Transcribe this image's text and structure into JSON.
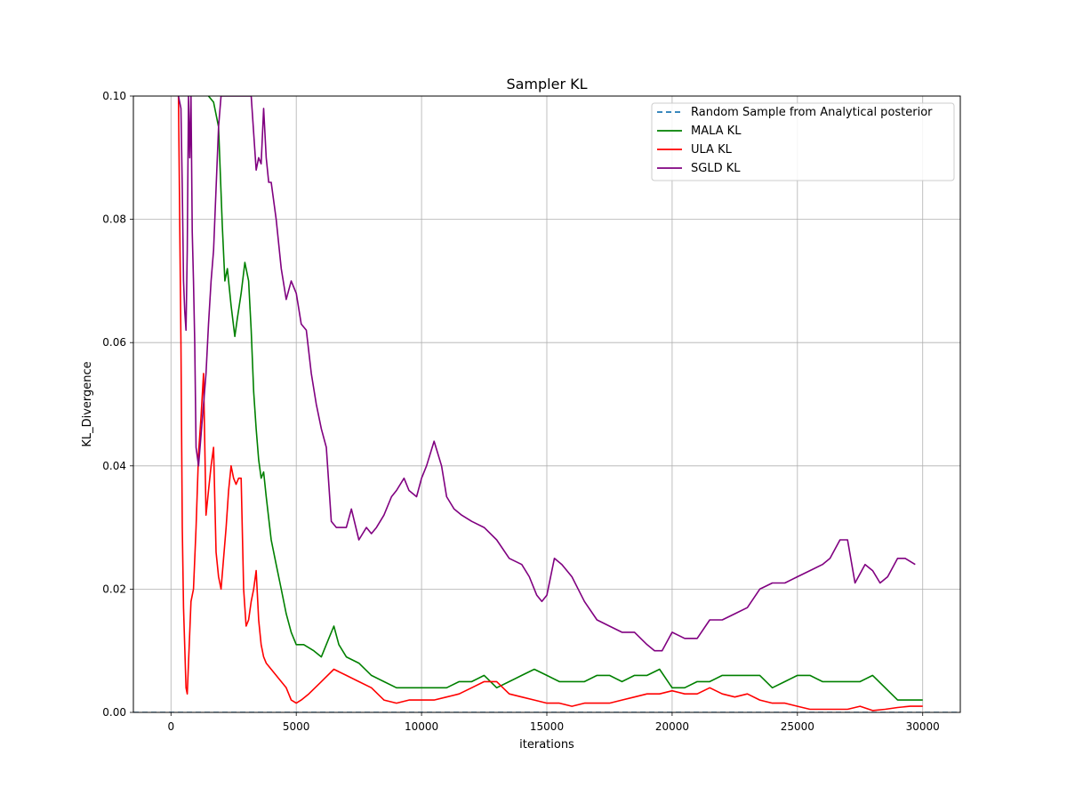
{
  "chart_data": {
    "type": "line",
    "title": "Sampler KL",
    "xlabel": "iterations",
    "ylabel": "KL_Divergence",
    "xlim": [
      -1500,
      31500
    ],
    "ylim": [
      0,
      0.1
    ],
    "xticks": [
      0,
      5000,
      10000,
      15000,
      20000,
      25000,
      30000
    ],
    "yticks": [
      0.0,
      0.02,
      0.04,
      0.06,
      0.08,
      0.1
    ],
    "ytick_labels": [
      "0.00",
      "0.02",
      "0.04",
      "0.06",
      "0.08",
      "0.10"
    ],
    "grid": true,
    "legend_position": "top-right",
    "series": [
      {
        "name": "Random Sample from Analytical posterior",
        "color": "#1f77b4",
        "style": "dashed",
        "x": [
          -1500,
          31500
        ],
        "y": [
          0.0,
          0.0
        ]
      },
      {
        "name": "MALA KL",
        "color": "#008000",
        "style": "solid",
        "x": [
          1500,
          1700,
          1900,
          2050,
          2150,
          2250,
          2400,
          2550,
          2650,
          2800,
          2950,
          3100,
          3200,
          3300,
          3400,
          3500,
          3600,
          3700,
          3800,
          4000,
          4200,
          4400,
          4600,
          4800,
          5000,
          5300,
          5700,
          6000,
          6300,
          6500,
          6700,
          7000,
          7500,
          8000,
          8500,
          9000,
          9500,
          10000,
          10500,
          11000,
          11500,
          12000,
          12500,
          13000,
          13500,
          14000,
          14500,
          15000,
          15500,
          16000,
          16500,
          17000,
          17500,
          18000,
          18500,
          19000,
          19500,
          20000,
          20500,
          21000,
          21500,
          22000,
          22500,
          23000,
          23500,
          24000,
          24500,
          25000,
          25500,
          26000,
          26500,
          27000,
          27500,
          28000,
          28500,
          29000,
          29500,
          30000
        ],
        "y": [
          0.1,
          0.099,
          0.095,
          0.079,
          0.07,
          0.072,
          0.066,
          0.061,
          0.064,
          0.068,
          0.073,
          0.07,
          0.062,
          0.052,
          0.046,
          0.041,
          0.038,
          0.039,
          0.035,
          0.028,
          0.024,
          0.02,
          0.016,
          0.013,
          0.011,
          0.011,
          0.01,
          0.009,
          0.012,
          0.014,
          0.011,
          0.009,
          0.008,
          0.006,
          0.005,
          0.004,
          0.004,
          0.004,
          0.004,
          0.004,
          0.005,
          0.005,
          0.006,
          0.004,
          0.005,
          0.006,
          0.007,
          0.006,
          0.005,
          0.005,
          0.005,
          0.006,
          0.006,
          0.005,
          0.006,
          0.006,
          0.007,
          0.004,
          0.004,
          0.005,
          0.005,
          0.006,
          0.006,
          0.006,
          0.006,
          0.004,
          0.005,
          0.006,
          0.006,
          0.005,
          0.005,
          0.005,
          0.005,
          0.006,
          0.004,
          0.002,
          0.002,
          0.002
        ]
      },
      {
        "name": "ULA KL",
        "color": "#ff0000",
        "style": "solid",
        "x": [
          300,
          400,
          450,
          500,
          600,
          650,
          700,
          800,
          900,
          1000,
          1100,
          1200,
          1300,
          1400,
          1500,
          1600,
          1700,
          1800,
          1900,
          2000,
          2200,
          2300,
          2400,
          2500,
          2600,
          2700,
          2800,
          2900,
          3000,
          3100,
          3200,
          3300,
          3400,
          3500,
          3600,
          3700,
          3800,
          4000,
          4200,
          4400,
          4600,
          4800,
          5000,
          5200,
          5500,
          6000,
          6500,
          7000,
          7500,
          8000,
          8500,
          9000,
          9500,
          10000,
          10500,
          11000,
          11500,
          12000,
          12500,
          13000,
          13500,
          14000,
          14500,
          15000,
          15500,
          16000,
          16500,
          17000,
          17500,
          18000,
          18500,
          19000,
          19500,
          20000,
          20500,
          21000,
          21500,
          22000,
          22500,
          23000,
          23500,
          24000,
          24500,
          25000,
          25500,
          26000,
          26500,
          27000,
          27500,
          28000,
          28500,
          29000,
          29500,
          30000
        ],
        "y": [
          0.1,
          0.06,
          0.03,
          0.017,
          0.004,
          0.003,
          0.008,
          0.018,
          0.02,
          0.03,
          0.042,
          0.048,
          0.055,
          0.032,
          0.036,
          0.04,
          0.043,
          0.026,
          0.022,
          0.02,
          0.03,
          0.036,
          0.04,
          0.038,
          0.037,
          0.038,
          0.038,
          0.02,
          0.014,
          0.015,
          0.018,
          0.02,
          0.023,
          0.015,
          0.011,
          0.009,
          0.008,
          0.007,
          0.006,
          0.005,
          0.004,
          0.002,
          0.0015,
          0.002,
          0.003,
          0.005,
          0.007,
          0.006,
          0.005,
          0.004,
          0.002,
          0.0015,
          0.002,
          0.002,
          0.002,
          0.0025,
          0.003,
          0.004,
          0.005,
          0.005,
          0.003,
          0.0025,
          0.002,
          0.0015,
          0.0015,
          0.001,
          0.0015,
          0.0015,
          0.0015,
          0.002,
          0.0025,
          0.003,
          0.003,
          0.0035,
          0.003,
          0.003,
          0.004,
          0.003,
          0.0025,
          0.003,
          0.002,
          0.0015,
          0.0015,
          0.001,
          0.0005,
          0.0005,
          0.0005,
          0.0005,
          0.001,
          0.0003,
          0.0005,
          0.0008,
          0.001,
          0.001
        ]
      },
      {
        "name": "SGLD KL",
        "color": "#800080",
        "style": "solid",
        "x": [
          300,
          400,
          450,
          500,
          550,
          600,
          650,
          700,
          750,
          800,
          850,
          900,
          950,
          1000,
          1100,
          1200,
          1300,
          1400,
          1500,
          1600,
          1700,
          1800,
          1900,
          2000,
          2200,
          2400,
          2600,
          2800,
          3000,
          3200,
          3400,
          3500,
          3600,
          3700,
          3800,
          3900,
          4000,
          4200,
          4400,
          4600,
          4800,
          5000,
          5200,
          5400,
          5600,
          5800,
          6000,
          6200,
          6400,
          6600,
          6800,
          7000,
          7200,
          7500,
          7800,
          8000,
          8200,
          8500,
          8800,
          9000,
          9300,
          9500,
          9800,
          10000,
          10200,
          10500,
          10800,
          11000,
          11300,
          11600,
          12000,
          12500,
          13000,
          13500,
          14000,
          14300,
          14600,
          14800,
          15000,
          15300,
          15600,
          16000,
          16500,
          17000,
          17500,
          18000,
          18500,
          19000,
          19300,
          19600,
          20000,
          20500,
          21000,
          21500,
          22000,
          22500,
          23000,
          23500,
          24000,
          24500,
          25000,
          25500,
          26000,
          26300,
          26700,
          27000,
          27300,
          27700,
          28000,
          28300,
          28600,
          29000,
          29300,
          29700
        ],
        "y": [
          0.1,
          0.098,
          0.085,
          0.07,
          0.065,
          0.062,
          0.075,
          0.1,
          0.09,
          0.1,
          0.078,
          0.07,
          0.06,
          0.043,
          0.04,
          0.045,
          0.05,
          0.055,
          0.063,
          0.07,
          0.075,
          0.085,
          0.095,
          0.1,
          0.1,
          0.1,
          0.1,
          0.1,
          0.1,
          0.1,
          0.088,
          0.09,
          0.089,
          0.098,
          0.09,
          0.086,
          0.086,
          0.08,
          0.072,
          0.067,
          0.07,
          0.068,
          0.063,
          0.062,
          0.055,
          0.05,
          0.046,
          0.043,
          0.031,
          0.03,
          0.03,
          0.03,
          0.033,
          0.028,
          0.03,
          0.029,
          0.03,
          0.032,
          0.035,
          0.036,
          0.038,
          0.036,
          0.035,
          0.038,
          0.04,
          0.044,
          0.04,
          0.035,
          0.033,
          0.032,
          0.031,
          0.03,
          0.028,
          0.025,
          0.024,
          0.022,
          0.019,
          0.018,
          0.019,
          0.025,
          0.024,
          0.022,
          0.018,
          0.015,
          0.014,
          0.013,
          0.013,
          0.011,
          0.01,
          0.01,
          0.013,
          0.012,
          0.012,
          0.015,
          0.015,
          0.016,
          0.017,
          0.02,
          0.021,
          0.021,
          0.022,
          0.023,
          0.024,
          0.025,
          0.028,
          0.028,
          0.021,
          0.024,
          0.023,
          0.021,
          0.022,
          0.025,
          0.025,
          0.024
        ]
      }
    ]
  }
}
